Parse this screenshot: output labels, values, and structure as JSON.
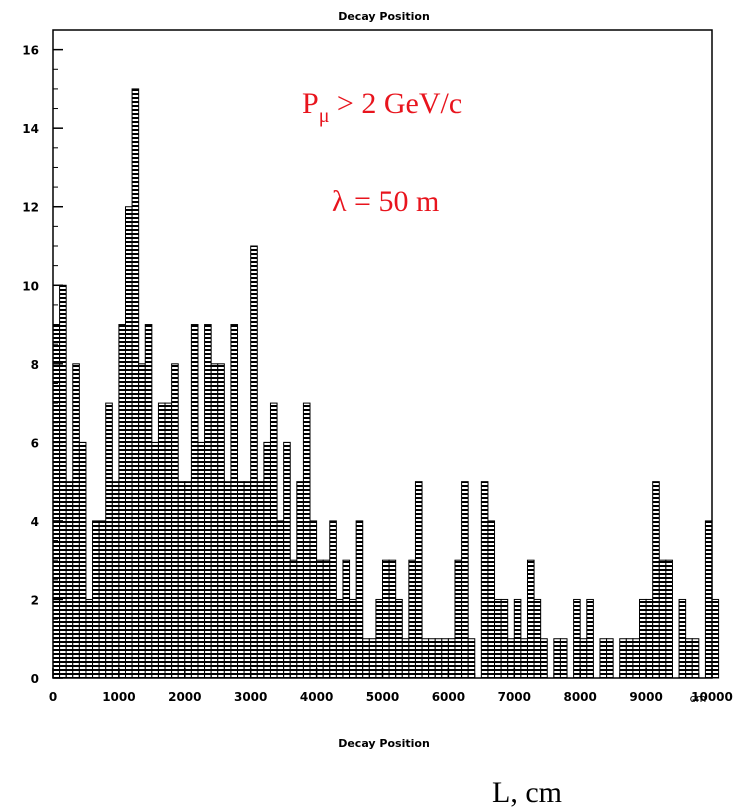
{
  "chart_data": {
    "type": "bar",
    "title": "Decay Position",
    "xlabel": "Decay Position",
    "x_unit": "cm",
    "external_xlabel": "L, cm",
    "annotations": [
      {
        "base": "P",
        "sub": "μ",
        "rest": " > 2 GeV/c"
      },
      {
        "text": "λ = 50 m"
      }
    ],
    "xlim": [
      0,
      10000
    ],
    "ylim": [
      0,
      16.5
    ],
    "bin_width": 100,
    "x_ticks": [
      0,
      1000,
      2000,
      3000,
      4000,
      5000,
      6000,
      7000,
      8000,
      9000,
      10000
    ],
    "y_ticks": [
      0,
      2,
      4,
      6,
      8,
      10,
      12,
      14,
      16
    ],
    "grid": false,
    "values": [
      9,
      10,
      5,
      8,
      6,
      2,
      4,
      4,
      7,
      5,
      9,
      12,
      15,
      8,
      9,
      6,
      7,
      7,
      8,
      5,
      5,
      9,
      6,
      9,
      8,
      8,
      5,
      9,
      5,
      5,
      11,
      5,
      6,
      7,
      4,
      6,
      3,
      5,
      7,
      4,
      3,
      3,
      4,
      2,
      3,
      2,
      4,
      1,
      1,
      2,
      3,
      3,
      2,
      1,
      3,
      5,
      1,
      1,
      1,
      1,
      1,
      3,
      5,
      1,
      0,
      5,
      4,
      2,
      2,
      1,
      2,
      1,
      3,
      2,
      1,
      0,
      1,
      1,
      0,
      2,
      1,
      2,
      0,
      1,
      1,
      0,
      1,
      1,
      1,
      2,
      2,
      5,
      3,
      3,
      0,
      2,
      1,
      1,
      0,
      4,
      2
    ]
  }
}
